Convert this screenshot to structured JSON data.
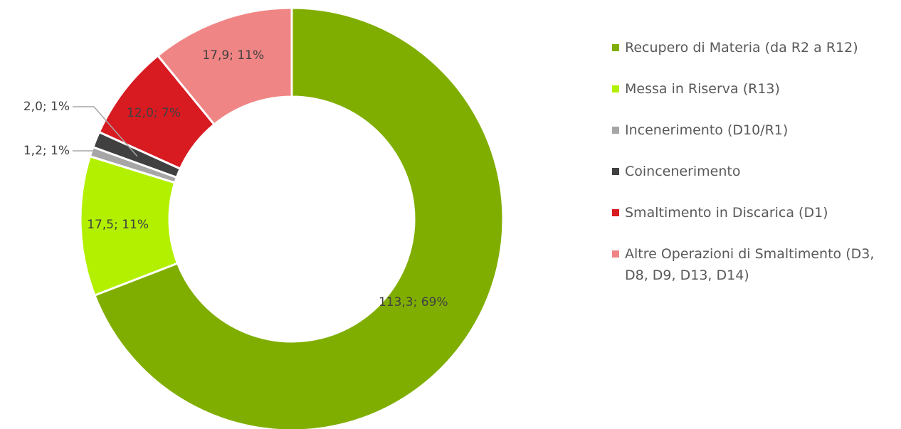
{
  "chart_data": {
    "type": "donut",
    "categories": [
      "Recupero di Materia (da R2 a R12)",
      "Messa in Riserva (R13)",
      "Incenerimento (D10/R1)",
      "Coincenerimento",
      "Smaltimento in Discarica (D1)",
      "Altre Operazioni di Smaltimento (D3, D8, D9, D13, D14)"
    ],
    "values": [
      113.3,
      17.5,
      1.2,
      2.0,
      12.0,
      17.9
    ],
    "value_labels": [
      "113,3;  69%",
      "17,5;  11%",
      "1,2; 1%",
      "2,0; 1%",
      "12,0; 7%",
      "17,9; 11%"
    ],
    "colors": [
      "#80ae00",
      "#b3f000",
      "#a6a6a6",
      "#404040",
      "#d81b21",
      "#f08585"
    ],
    "legend": "right"
  }
}
